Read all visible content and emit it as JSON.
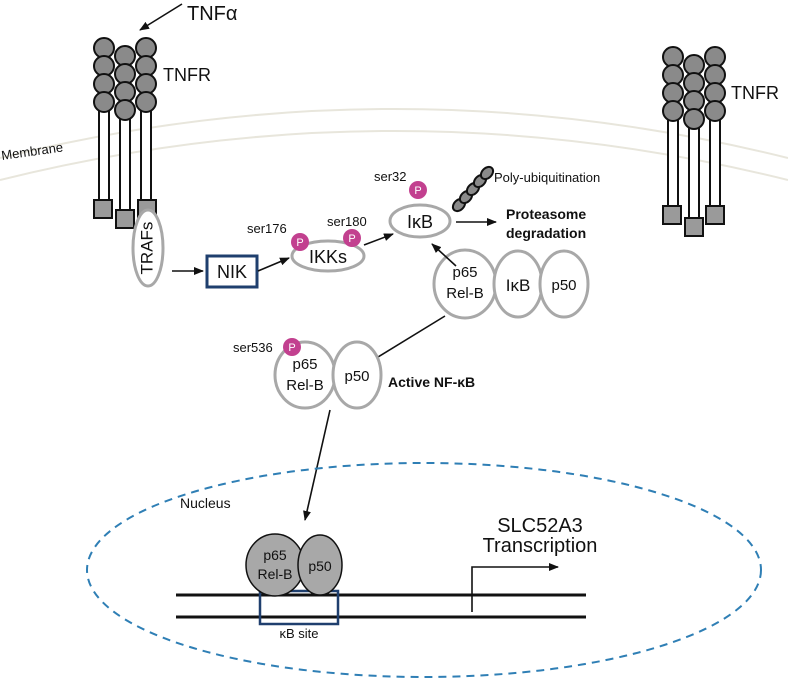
{
  "labels": {
    "tnfa": "TNFα",
    "tnfr_left": "TNFR",
    "tnfr_right": "TNFR",
    "membrane": "Membrane",
    "trafs": "TRAFs",
    "nik": "NIK",
    "ikks": "IKKs",
    "ikb": "IκB",
    "ser176": "ser176",
    "ser180": "ser180",
    "ser32": "ser32",
    "ser536": "ser536",
    "phospho": "P",
    "poly_ub": "Poly-ubiquitination",
    "proteasome_1": "Proteasome",
    "proteasome_2": "degradation",
    "complex_p65": "p65",
    "complex_relb": "Rel-B",
    "complex_ikb": "IκB",
    "complex_p50": "p50",
    "active_p65": "p65",
    "active_relb": "Rel-B",
    "active_p50": "p50",
    "active_nfkb": "Active NF-κB",
    "nucleus": "Nucleus",
    "dna_p65": "p65",
    "dna_relb": "Rel-B",
    "dna_p50": "p50",
    "kb_site": "κB site",
    "slc_1": "SLC52A3",
    "slc_2": "Transcription"
  },
  "colors": {
    "phospho": "#c2408f",
    "nucleus_border": "#2f7fb5",
    "nik_border": "#1f3f6e",
    "protein_outline": "#a8a8a8",
    "receptor_bead": "#8a8a8a"
  }
}
